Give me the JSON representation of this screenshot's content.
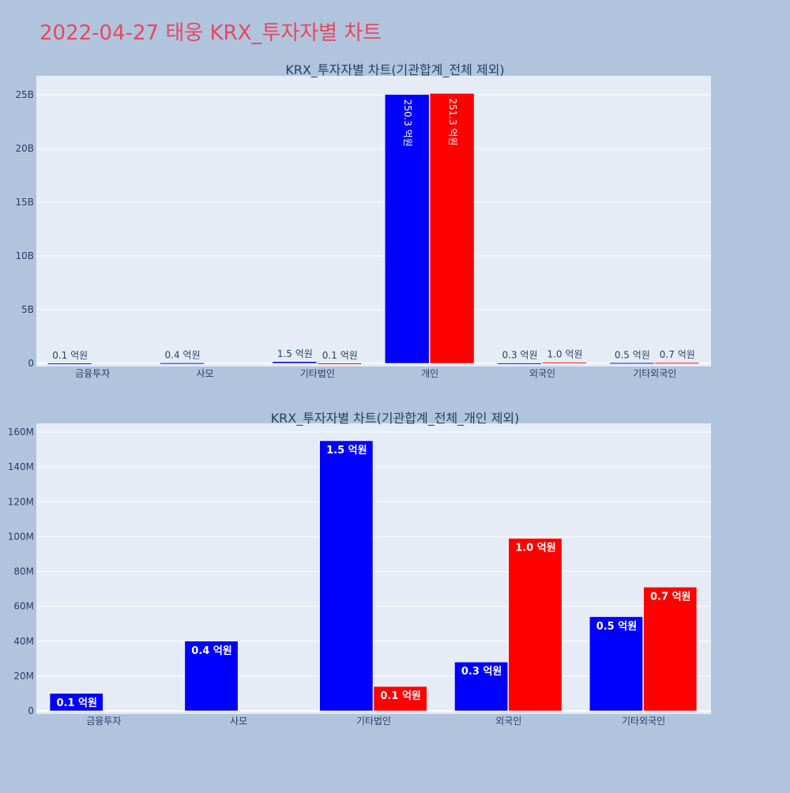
{
  "page_title": "2022-04-27 태웅 KRX_투자자별 차트",
  "colors": {
    "page_bg": "#b0c4de",
    "plot_bg": "#e5ecf6",
    "grid": "#ffffff",
    "title": "#e8475f",
    "text": "#2a3f5f",
    "series_a": "#0000ff",
    "series_b": "#ff0000"
  },
  "chart_data": [
    {
      "type": "bar",
      "title": "KRX_투자자별 차트(기관합계_전체 제외)",
      "categories": [
        "금융투자",
        "사모",
        "기타법인",
        "개인",
        "외국인",
        "기타외국인"
      ],
      "series": [
        {
          "values": [
            10000000,
            40000000,
            155000000,
            25030000000,
            28000000,
            54000000
          ],
          "labels": [
            "0.1 억원",
            "0.4 억원",
            "1.5 억원",
            "250.3 억원",
            "0.3 억원",
            "0.5 억원"
          ]
        },
        {
          "values": [
            0,
            0,
            14000000,
            25130000000,
            99000000,
            71000000
          ],
          "labels": [
            "",
            "",
            "0.1 억원",
            "251.3 억원",
            "1.0 억원",
            "0.7 억원"
          ]
        }
      ],
      "ylim": [
        0,
        26500000000
      ],
      "yticks": [
        0,
        5000000000,
        10000000000,
        15000000000,
        20000000000,
        25000000000
      ],
      "ytick_labels": [
        "0",
        "5B",
        "10B",
        "15B",
        "20B",
        "25B"
      ],
      "grid": true,
      "legend": "none"
    },
    {
      "type": "bar",
      "title": "KRX_투자자별 차트(기관합계_전체_개인 제외)",
      "categories": [
        "금융투자",
        "사모",
        "기타법인",
        "외국인",
        "기타외국인"
      ],
      "series": [
        {
          "values": [
            10000000,
            40000000,
            155000000,
            28000000,
            54000000
          ],
          "labels": [
            "0.1 억원",
            "0.4 억원",
            "1.5 억원",
            "0.3 억원",
            "0.5 억원"
          ]
        },
        {
          "values": [
            0,
            0,
            14000000,
            99000000,
            71000000
          ],
          "labels": [
            "",
            "",
            "0.1 억원",
            "1.0 억원",
            "0.7 억원"
          ]
        }
      ],
      "ylim": [
        0,
        165000000
      ],
      "yticks": [
        0,
        20000000,
        40000000,
        60000000,
        80000000,
        100000000,
        120000000,
        140000000,
        160000000
      ],
      "ytick_labels": [
        "0",
        "20M",
        "40M",
        "60M",
        "80M",
        "100M",
        "120M",
        "140M",
        "160M"
      ],
      "grid": true,
      "legend": "none"
    }
  ]
}
